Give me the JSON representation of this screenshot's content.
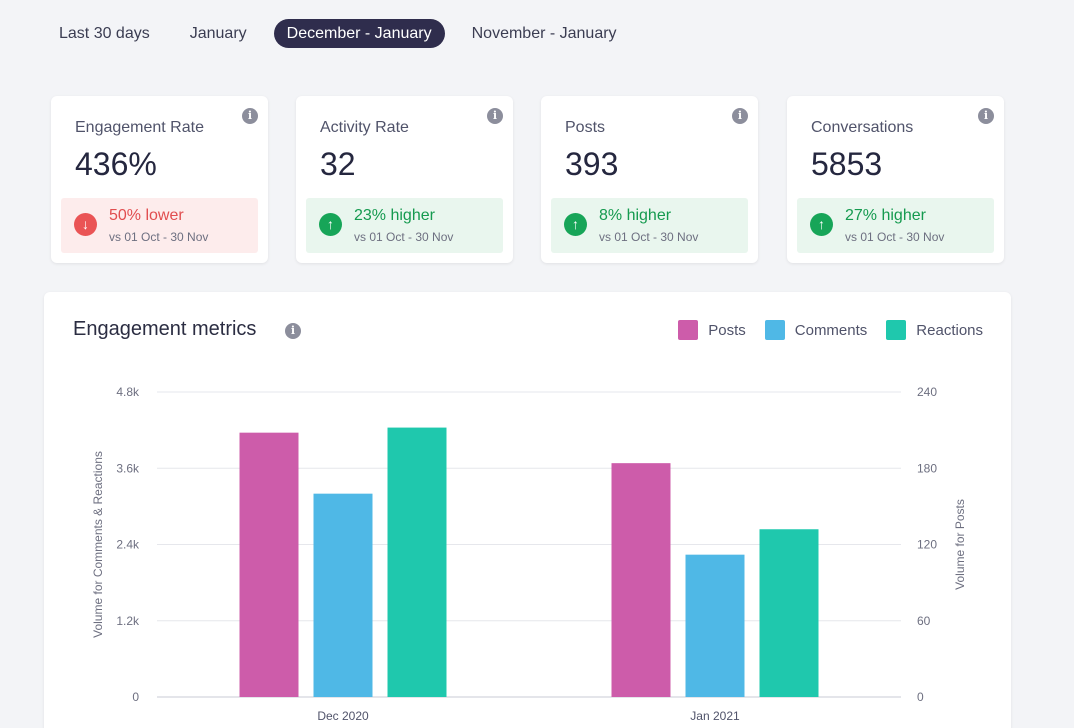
{
  "tabs": [
    {
      "label": "Last 30 days",
      "active": false
    },
    {
      "label": "January",
      "active": false
    },
    {
      "label": "December - January",
      "active": true
    },
    {
      "label": "November - January",
      "active": false
    }
  ],
  "cards": [
    {
      "title": "Engagement Rate",
      "value": "436%",
      "change": "50% lower",
      "direction": "down",
      "comparison": "vs 01 Oct - 30 Nov"
    },
    {
      "title": "Activity Rate",
      "value": "32",
      "change": "23% higher",
      "direction": "up",
      "comparison": "vs 01 Oct - 30 Nov"
    },
    {
      "title": "Posts",
      "value": "393",
      "change": "8% higher",
      "direction": "up",
      "comparison": "vs 01 Oct - 30 Nov"
    },
    {
      "title": "Conversations",
      "value": "5853",
      "change": "27% higher",
      "direction": "up",
      "comparison": "vs 01 Oct - 30 Nov"
    }
  ],
  "icons": {
    "info": "info-icon",
    "arrow_down": "arrow-down-icon",
    "arrow_up": "arrow-up-icon"
  },
  "chart_panel": {
    "title": "Engagement metrics"
  },
  "chart_data": {
    "type": "bar",
    "categories": [
      "Dec 2020",
      "Jan 2021"
    ],
    "series": [
      {
        "name": "Posts",
        "axis": "right",
        "color": "#cd5caa",
        "values": [
          208,
          184
        ]
      },
      {
        "name": "Comments",
        "axis": "left",
        "color": "#4fb8e6",
        "values": [
          3200,
          2240
        ]
      },
      {
        "name": "Reactions",
        "axis": "left",
        "color": "#1fc8ad",
        "values": [
          4240,
          2640
        ]
      }
    ],
    "y_left": {
      "label": "Volume for Comments & Reactions",
      "ticks": [
        "0",
        "1.2k",
        "2.4k",
        "3.6k",
        "4.8k"
      ],
      "tick_values": [
        0,
        1200,
        2400,
        3600,
        4800
      ],
      "range": [
        0,
        4800
      ]
    },
    "y_right": {
      "label": "Volume for Posts",
      "ticks": [
        "0",
        "60",
        "120",
        "180",
        "240"
      ],
      "tick_values": [
        0,
        60,
        120,
        180,
        240
      ],
      "range": [
        0,
        240
      ]
    },
    "grid": true,
    "legend": "top-right"
  }
}
